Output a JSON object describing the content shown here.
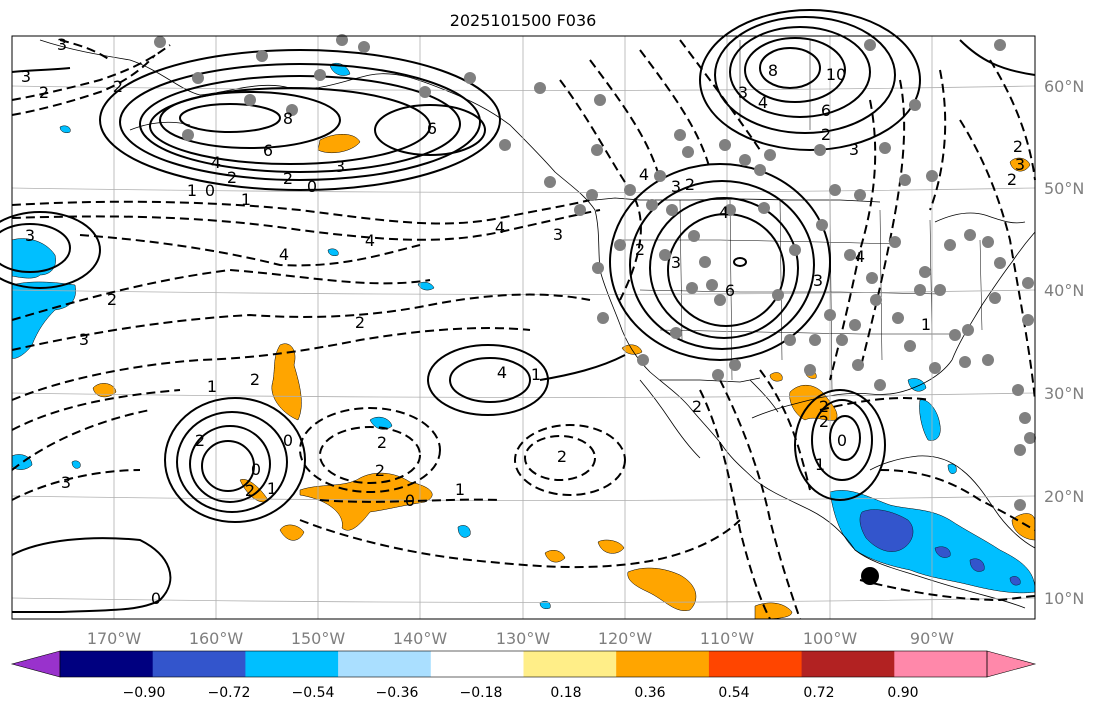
{
  "title": "2025101500 F036",
  "lon_labels": [
    "170°W",
    "160°W",
    "150°W",
    "140°W",
    "130°W",
    "120°W",
    "110°W",
    "100°W",
    "90°W"
  ],
  "lat_labels": [
    "60°N",
    "50°N",
    "40°N",
    "30°N",
    "20°N",
    "10°N"
  ],
  "colorbar": {
    "ticks": [
      "−0.90",
      "−0.72",
      "−0.54",
      "−0.36",
      "−0.18",
      "0.18",
      "0.36",
      "0.54",
      "0.72",
      "0.90"
    ],
    "colors": {
      "under": "#9932cc",
      "bins": [
        "#000080",
        "#3355cc",
        "#00bfff",
        "#aadfff",
        "#ffffff",
        "#ffee88",
        "#ffa500",
        "#ff4500",
        "#b22222",
        "#ff88aa"
      ],
      "over": "#ff88aa"
    }
  },
  "contour_labels": [
    "3",
    "2",
    "2",
    "3",
    "8",
    "6",
    "4",
    "2",
    "1",
    "0",
    "6",
    "3",
    "0",
    "2",
    "1",
    "2",
    "3",
    "4",
    "4",
    "4",
    "3",
    "2",
    "2",
    "1",
    "0",
    "3",
    "2",
    "0",
    "2",
    "1",
    "2",
    "2",
    "2",
    "0",
    "1",
    "3",
    "4",
    "8",
    "10",
    "6",
    "2",
    "4",
    "3",
    "4",
    "3",
    "6",
    "3",
    "2",
    "0",
    "1",
    "2",
    "2",
    "2",
    "1",
    "2",
    "3",
    "4",
    "4",
    "3",
    "2",
    "1",
    "0",
    "2",
    "3"
  ],
  "colors": {
    "ocean": "#ffffff",
    "grid": "#b0b0b0",
    "contour": "#000000",
    "station": "#808080"
  }
}
